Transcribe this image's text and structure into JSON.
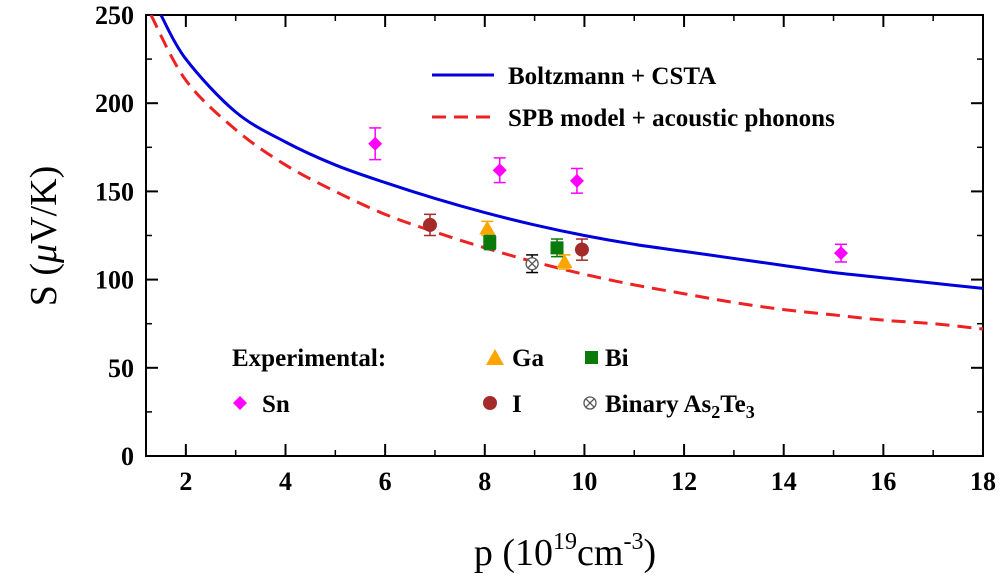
{
  "chart_data": {
    "type": "scatter",
    "xlabel": {
      "main": "p (10",
      "sup": "19",
      "mid": "cm",
      "sup2": "-3",
      "end": ")"
    },
    "ylabel": {
      "main": "S (",
      "mu": "μ",
      "end": "V/K)"
    },
    "xlim": [
      1.2,
      18
    ],
    "ylim": [
      0,
      250
    ],
    "xticks": [
      2,
      4,
      6,
      8,
      10,
      12,
      14,
      16,
      18
    ],
    "yticks": [
      0,
      50,
      100,
      150,
      200,
      250
    ],
    "grid": false,
    "legend_lines_position": "top-right",
    "legend_markers_position": "bottom-center",
    "lines": [
      {
        "name": "Boltzmann + CSTA",
        "color": "#0000dd",
        "dash": "solid",
        "points": [
          [
            1.5,
            250
          ],
          [
            2,
            225
          ],
          [
            3,
            195
          ],
          [
            4,
            178
          ],
          [
            5,
            165
          ],
          [
            6,
            155
          ],
          [
            7,
            146
          ],
          [
            8,
            138
          ],
          [
            9,
            131
          ],
          [
            10,
            125
          ],
          [
            11,
            120
          ],
          [
            12,
            116
          ],
          [
            13,
            112
          ],
          [
            14,
            108
          ],
          [
            15,
            104
          ],
          [
            16,
            101
          ],
          [
            17,
            98
          ],
          [
            18,
            95
          ]
        ]
      },
      {
        "name": "SPB model + acoustic phonons",
        "color": "#ee2222",
        "dash": "dashed",
        "points": [
          [
            1.3,
            250
          ],
          [
            2,
            213
          ],
          [
            3,
            185
          ],
          [
            4,
            165
          ],
          [
            5,
            150
          ],
          [
            6,
            137
          ],
          [
            7,
            127
          ],
          [
            8,
            118
          ],
          [
            9,
            110
          ],
          [
            10,
            103
          ],
          [
            11,
            97
          ],
          [
            12,
            92
          ],
          [
            13,
            87
          ],
          [
            14,
            83
          ],
          [
            15,
            80
          ],
          [
            16,
            77
          ],
          [
            17,
            75
          ],
          [
            18,
            72
          ]
        ]
      }
    ],
    "series": [
      {
        "name": "Ga",
        "marker": "triangle",
        "color": "#ffa500",
        "points": [
          {
            "x": 8.05,
            "y": 129,
            "err": 4
          },
          {
            "x": 9.6,
            "y": 110,
            "err": 4
          }
        ]
      },
      {
        "name": "Bi",
        "marker": "square",
        "color": "#0a7a0a",
        "points": [
          {
            "x": 8.1,
            "y": 121,
            "err": 4
          },
          {
            "x": 9.45,
            "y": 118,
            "err": 5
          }
        ]
      },
      {
        "name": "Sn",
        "marker": "diamond",
        "color": "#ff00ff",
        "points": [
          {
            "x": 5.8,
            "y": 177,
            "err": 9
          },
          {
            "x": 8.3,
            "y": 162,
            "err": 7
          },
          {
            "x": 9.85,
            "y": 156,
            "err": 7
          },
          {
            "x": 15.15,
            "y": 115,
            "err": 5
          }
        ]
      },
      {
        "name": "I",
        "marker": "circle",
        "color": "#a52a2a",
        "points": [
          {
            "x": 6.9,
            "y": 131,
            "err": 6
          },
          {
            "x": 9.95,
            "y": 117,
            "err": 6
          }
        ]
      },
      {
        "name_main": "Binary As",
        "name_sub1": "2",
        "name_mid": "Te",
        "name_sub2": "3",
        "marker": "otimes",
        "color": "#444444",
        "points": [
          {
            "x": 8.95,
            "y": 109,
            "err": 5
          }
        ]
      }
    ],
    "legend_experimental_label": "Experimental:"
  }
}
